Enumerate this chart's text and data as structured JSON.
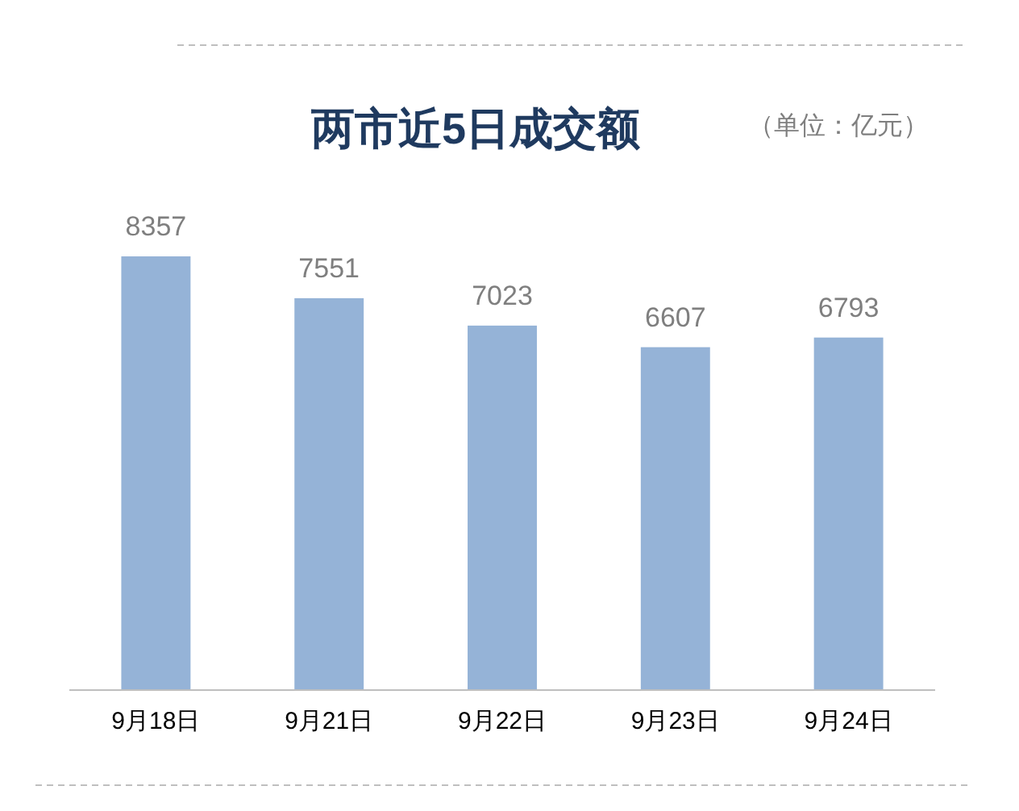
{
  "chart_data": {
    "type": "bar",
    "title": "两市近5日成交额",
    "annotations": [
      "（单位：亿元）"
    ],
    "categories": [
      "9月18日",
      "9月21日",
      "9月22日",
      "9月23日",
      "9月24日"
    ],
    "values": [
      8357,
      7551,
      7023,
      6607,
      6793
    ],
    "color": "#95b3d7",
    "data_labels": true
  }
}
